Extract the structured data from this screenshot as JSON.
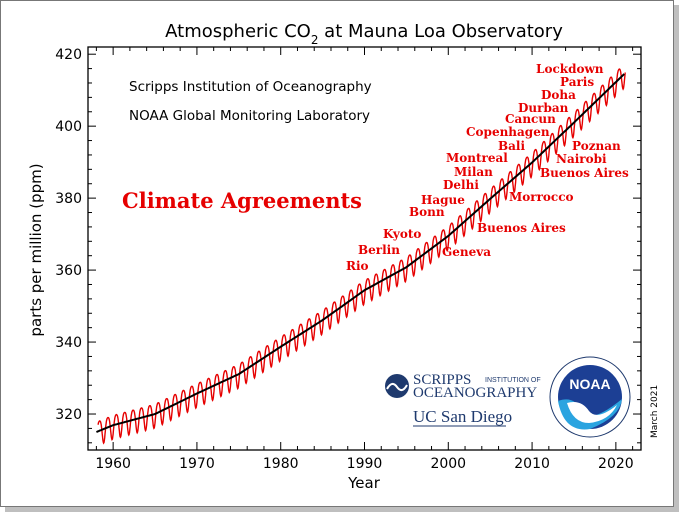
{
  "chart_data": {
    "type": "line",
    "title": "Atmospheric CO",
    "title_subscript": "2",
    "title_suffix": " at Mauna Loa Observatory",
    "xlabel": "Year",
    "ylabel": "parts per million (ppm)",
    "xlim": [
      1957,
      2023
    ],
    "ylim": [
      310,
      422
    ],
    "xticks": [
      "1960",
      "1970",
      "1980",
      "1990",
      "2000",
      "2010",
      "2020"
    ],
    "yticks": [
      "320",
      "340",
      "360",
      "380",
      "400",
      "420"
    ],
    "institutions": [
      "Scripps Institution of Oceanography",
      "NOAA Global Monitoring Laboratory"
    ],
    "date_stamp": "March 2021",
    "series": [
      {
        "color": "#e60000",
        "kind": "monthly",
        "seasonal_amplitude_ppm": 3.3
      },
      {
        "color": "#000000",
        "kind": "seasonally-adjusted trend",
        "x": [
          1958,
          1960,
          1965,
          1970,
          1975,
          1980,
          1985,
          1990,
          1995,
          2000,
          2005,
          2010,
          2015,
          2021
        ],
        "y": [
          315,
          316.9,
          320,
          325.7,
          331.1,
          338.7,
          346.1,
          354.4,
          360.8,
          369.5,
          379.8,
          389.9,
          401,
          414.5
        ]
      }
    ],
    "headline_annotation": "Climate Agreements",
    "annotations": [
      {
        "label": "Rio",
        "year": 1992
      },
      {
        "label": "Berlin",
        "year": 1995
      },
      {
        "label": "Kyoto",
        "year": 1997
      },
      {
        "label": "Bonn",
        "year": 1999
      },
      {
        "label": "Hague",
        "year": 2000
      },
      {
        "label": "Geneva",
        "year": 1996
      },
      {
        "label": "Delhi",
        "year": 2002
      },
      {
        "label": "Milan",
        "year": 2003
      },
      {
        "label": "Montreal",
        "year": 2005
      },
      {
        "label": "Buenos Aires",
        "year": 1998
      },
      {
        "label": "Morrocco",
        "year": 2001
      },
      {
        "label": "Bali",
        "year": 2007
      },
      {
        "label": "Copenhagen",
        "year": 2009
      },
      {
        "label": "Cancun",
        "year": 2010
      },
      {
        "label": "Durban",
        "year": 2011
      },
      {
        "label": "Doha",
        "year": 2012
      },
      {
        "label": "Paris",
        "year": 2015
      },
      {
        "label": "Lockdown",
        "year": 2020
      },
      {
        "label": "Poznan",
        "year": 2008
      },
      {
        "label": "Nairobi",
        "year": 2006
      },
      {
        "label": "Buenos Aires",
        "year": 2004
      }
    ]
  },
  "logos": {
    "scripps_line1": "SCRIPPS",
    "scripps_small": "INSTITUTION OF",
    "scripps_line2": "OCEANOGRAPHY",
    "ucsd": "UC San Diego",
    "noaa": "NOAA"
  }
}
